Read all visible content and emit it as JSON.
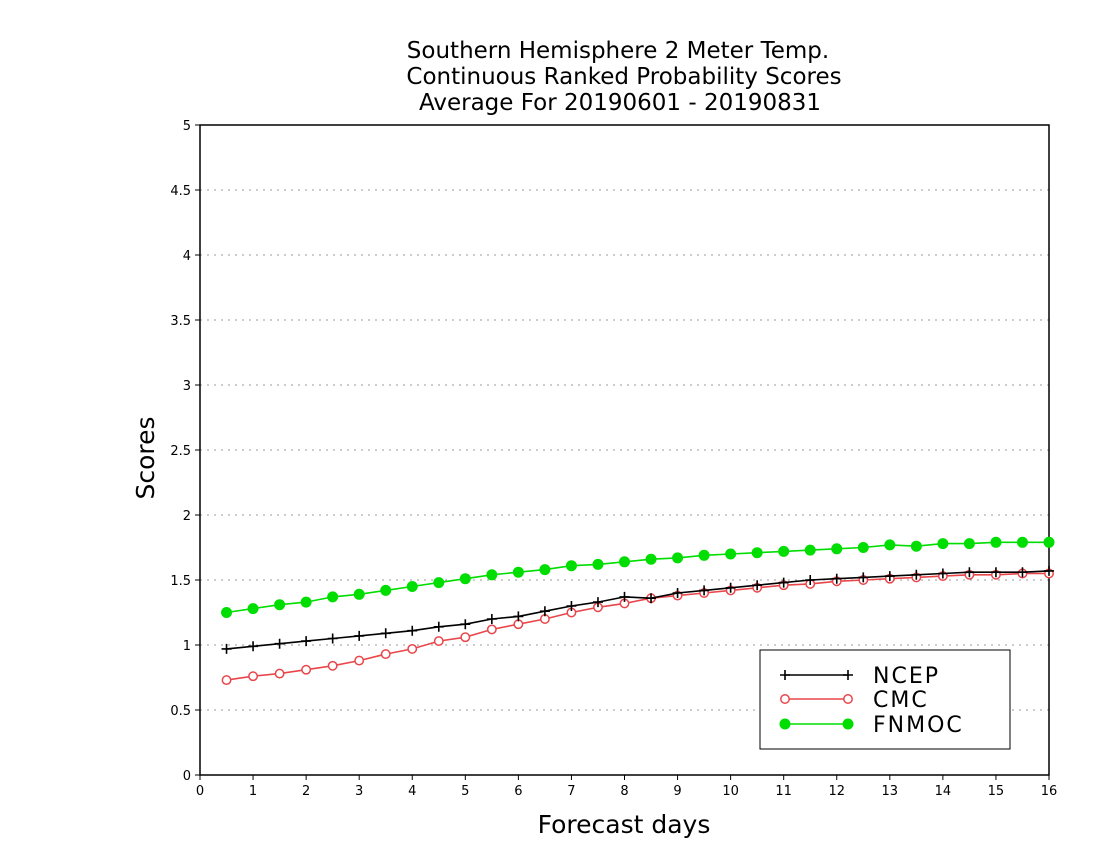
{
  "chart_data": {
    "type": "line",
    "title": [
      "Southern Hemisphere 2 Meter Temp.",
      "Continuous Ranked Probability Scores",
      "Average For 20190601 - 20190831"
    ],
    "xlabel": "Forecast days",
    "ylabel": "Scores",
    "xlim": [
      0,
      16
    ],
    "ylim": [
      0,
      5
    ],
    "xticks": [
      "0",
      "1",
      "2",
      "3",
      "4",
      "5",
      "6",
      "7",
      "8",
      "9",
      "10",
      "11",
      "12",
      "13",
      "14",
      "15",
      "16"
    ],
    "yticks": [
      "0",
      "0.5",
      "1",
      "1.5",
      "2",
      "2.5",
      "3",
      "3.5",
      "4",
      "4.5",
      "5"
    ],
    "grid": true,
    "legend_position": "bottom-right",
    "x": [
      0.5,
      1,
      1.5,
      2,
      2.5,
      3,
      3.5,
      4,
      4.5,
      5,
      5.5,
      6,
      6.5,
      7,
      7.5,
      8,
      8.5,
      9,
      9.5,
      10,
      10.5,
      11,
      11.5,
      12,
      12.5,
      13,
      13.5,
      14,
      14.5,
      15,
      15.5,
      16
    ],
    "series": [
      {
        "name": "NCEP",
        "color": "#000000",
        "marker": "plus",
        "values": [
          0.97,
          0.99,
          1.01,
          1.03,
          1.05,
          1.07,
          1.09,
          1.11,
          1.14,
          1.16,
          1.2,
          1.22,
          1.26,
          1.3,
          1.33,
          1.37,
          1.36,
          1.4,
          1.42,
          1.44,
          1.46,
          1.48,
          1.5,
          1.51,
          1.52,
          1.53,
          1.54,
          1.55,
          1.56,
          1.56,
          1.56,
          1.57
        ]
      },
      {
        "name": "CMC",
        "color": "#e8464b",
        "marker": "open-circle",
        "values": [
          0.73,
          0.76,
          0.78,
          0.81,
          0.84,
          0.88,
          0.93,
          0.97,
          1.03,
          1.06,
          1.12,
          1.16,
          1.2,
          1.25,
          1.29,
          1.32,
          1.36,
          1.38,
          1.4,
          1.42,
          1.44,
          1.46,
          1.47,
          1.49,
          1.5,
          1.51,
          1.52,
          1.53,
          1.54,
          1.54,
          1.55,
          1.55
        ]
      },
      {
        "name": "FNMOC",
        "color": "#00dd00",
        "marker": "filled-circle",
        "values": [
          1.25,
          1.28,
          1.31,
          1.33,
          1.37,
          1.39,
          1.42,
          1.45,
          1.48,
          1.51,
          1.54,
          1.56,
          1.58,
          1.61,
          1.62,
          1.64,
          1.66,
          1.67,
          1.69,
          1.7,
          1.71,
          1.72,
          1.73,
          1.74,
          1.75,
          1.77,
          1.76,
          1.78,
          1.78,
          1.79,
          1.79,
          1.79
        ]
      }
    ]
  }
}
